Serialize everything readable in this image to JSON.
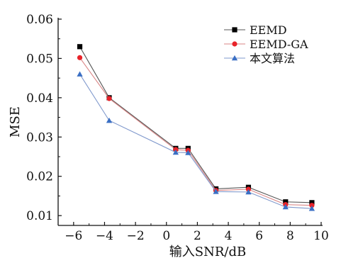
{
  "chart_data": {
    "type": "line",
    "xlabel": "输入SNR/dB",
    "ylabel": "MSE",
    "xlim": [
      -7,
      10
    ],
    "ylim": [
      0.0075,
      0.06
    ],
    "xticks": [
      -6,
      -4,
      -2,
      0,
      2,
      4,
      6,
      8,
      10
    ],
    "xtick_labels": [
      "−6",
      "−4",
      "−2",
      "0",
      "2",
      "4",
      "6",
      "8",
      "10"
    ],
    "yticks": [
      0.01,
      0.02,
      0.03,
      0.04,
      0.05,
      0.06
    ],
    "ytick_labels": [
      "0.01",
      "0.02",
      "0.03",
      "0.04",
      "0.05",
      "0.06"
    ],
    "grid": false,
    "legend_position": "top-right",
    "x": [
      -5.6,
      -3.7,
      0.6,
      1.4,
      3.2,
      5.3,
      7.7,
      9.4
    ],
    "series": [
      {
        "name": "EEMD",
        "marker": "square",
        "color": "#000000",
        "line_color": "#555555",
        "values": [
          0.053,
          0.04,
          0.0271,
          0.0271,
          0.0168,
          0.0172,
          0.0135,
          0.0133
        ]
      },
      {
        "name": "EEMD-GA",
        "marker": "circle",
        "color": "#e8232a",
        "line_color": "#d98585",
        "values": [
          0.0502,
          0.0398,
          0.0268,
          0.0266,
          0.0164,
          0.0167,
          0.0128,
          0.0126
        ]
      },
      {
        "name": "本文算法",
        "marker": "triangle",
        "color": "#3a6fc4",
        "line_color": "#7f98cc",
        "values": [
          0.046,
          0.0342,
          0.0261,
          0.026,
          0.0161,
          0.016,
          0.0122,
          0.0118
        ]
      }
    ]
  }
}
